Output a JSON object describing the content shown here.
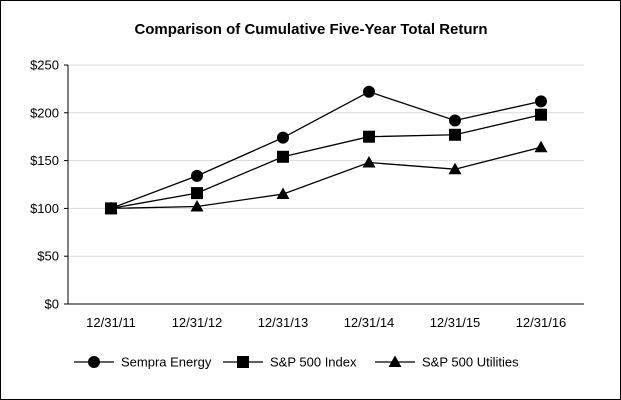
{
  "chart_data": {
    "type": "line",
    "title": "Comparison of Cumulative Five-Year Total Return",
    "xlabel": "",
    "ylabel": "",
    "categories": [
      "12/31/11",
      "12/31/12",
      "12/31/13",
      "12/31/14",
      "12/31/15",
      "12/31/16"
    ],
    "ylim": [
      0,
      250
    ],
    "yticks": [
      0,
      50,
      100,
      150,
      200,
      250
    ],
    "ytick_labels": [
      "$0",
      "$50",
      "$100",
      "$150",
      "$200",
      "$250"
    ],
    "grid": "horizontal",
    "legend_position": "bottom",
    "series": [
      {
        "name": "Sempra Energy",
        "marker": "circle",
        "color": "#000000",
        "values": [
          100,
          134,
          174,
          222,
          192,
          212
        ]
      },
      {
        "name": "S&P 500 Index",
        "marker": "square",
        "color": "#000000",
        "values": [
          100,
          116,
          154,
          175,
          177,
          198
        ]
      },
      {
        "name": "S&P 500 Utilities",
        "marker": "triangle",
        "color": "#000000",
        "values": [
          100,
          102,
          115,
          148,
          141,
          164
        ]
      }
    ]
  }
}
